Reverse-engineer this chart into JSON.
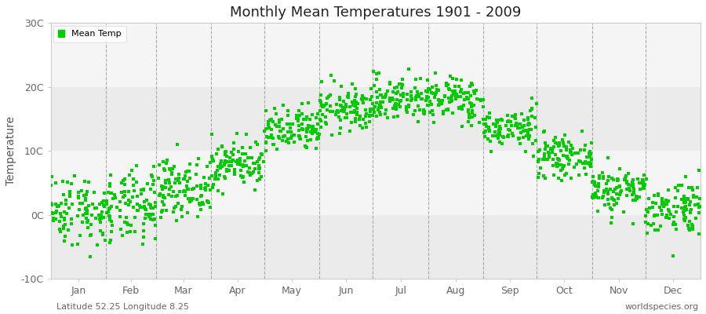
{
  "title": "Monthly Mean Temperatures 1901 - 2009",
  "ylabel": "Temperature",
  "xlabel_labels": [
    "Jan",
    "Feb",
    "Mar",
    "Apr",
    "May",
    "Jun",
    "Jul",
    "Aug",
    "Sep",
    "Oct",
    "Nov",
    "Dec"
  ],
  "bottom_left_text": "Latitude 52.25 Longitude 8.25",
  "bottom_right_text": "worldspecies.org",
  "legend_label": "Mean Temp",
  "dot_color": "#00CC00",
  "dot_size": 5,
  "ylim": [
    -10,
    30
  ],
  "yticks": [
    -10,
    0,
    10,
    20,
    30
  ],
  "ytick_labels": [
    "-10C",
    "0C",
    "10C",
    "20C",
    "30C"
  ],
  "bg_color": "#ffffff",
  "plot_bg_color": "#ffffff",
  "band_color_light": "#f0f0f0",
  "band_color_dark": "#e0e0e0",
  "n_years": 109,
  "monthly_means": [
    0.8,
    1.0,
    4.2,
    8.0,
    13.0,
    16.5,
    18.2,
    18.0,
    13.5,
    9.0,
    4.0,
    1.2
  ],
  "monthly_stds": [
    2.8,
    2.8,
    2.2,
    1.8,
    1.8,
    1.8,
    1.8,
    1.8,
    1.5,
    1.5,
    1.8,
    2.2
  ],
  "seed": 42
}
